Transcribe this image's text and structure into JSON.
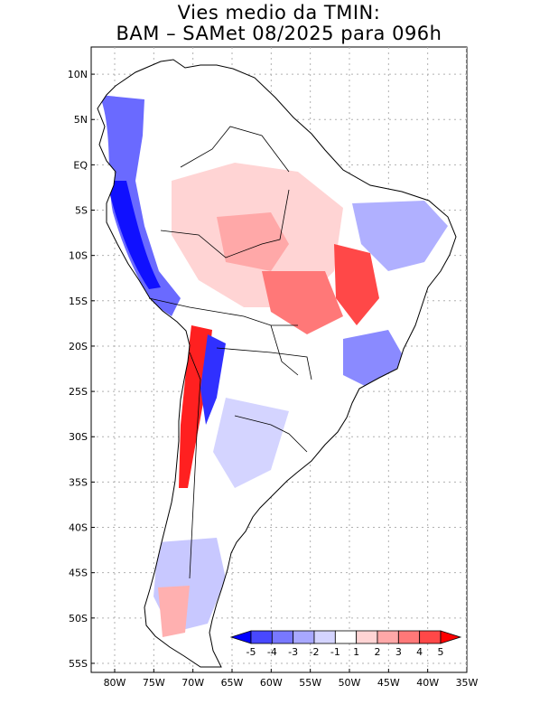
{
  "title": {
    "line1": "Vies medio da TMIN:",
    "line2": "BAM – SAMet 08/2025  para 096h"
  },
  "map": {
    "lat_labels": [
      "10N",
      "5N",
      "EQ",
      "5S",
      "10S",
      "15S",
      "20S",
      "25S",
      "30S",
      "35S",
      "40S",
      "45S",
      "50S",
      "55S"
    ],
    "lon_labels": [
      "80W",
      "75W",
      "70W",
      "65W",
      "60W",
      "55W",
      "50W",
      "45W",
      "40W",
      "35W"
    ],
    "lat_values": [
      10,
      5,
      0,
      -5,
      -10,
      -15,
      -20,
      -25,
      -30,
      -35,
      -40,
      -45,
      -50,
      -55
    ],
    "lon_values": [
      -80,
      -75,
      -70,
      -65,
      -60,
      -55,
      -50,
      -45,
      -40,
      -35
    ],
    "lat_range": [
      -56,
      13
    ],
    "lon_range": [
      -83,
      -35
    ]
  },
  "colorbar": {
    "labels": [
      "-5",
      "-4",
      "-3",
      "-2",
      "-1",
      "1",
      "2",
      "3",
      "4",
      "5"
    ],
    "colors": [
      "#0000ff",
      "#4848ff",
      "#7878ff",
      "#a8a8ff",
      "#d4d4ff",
      "#ffffff",
      "#ffd4d4",
      "#ffa8a8",
      "#ff7878",
      "#ff4848",
      "#ff0000"
    ]
  },
  "colors": {
    "land_outline": "#000000",
    "grid": "#b0b0b0"
  }
}
